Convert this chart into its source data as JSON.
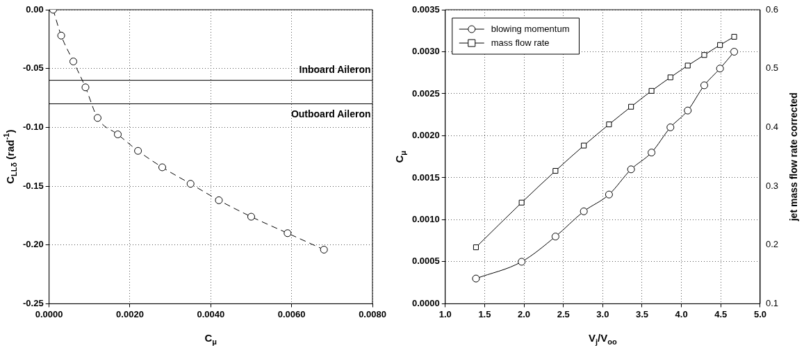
{
  "chart_data": [
    {
      "type": "line",
      "xlabel": "C$_{μ}$",
      "ylabel": "C$_{LLδ}$ (rad$^{-1}$)",
      "x": [
        0.0001,
        0.0003,
        0.0006,
        0.0009,
        0.0012,
        0.0017,
        0.0022,
        0.0028,
        0.0035,
        0.0042,
        0.005,
        0.0059,
        0.0068
      ],
      "series": [
        {
          "color": "#000000",
          "values": [
            0,
            -0.022,
            -0.044,
            -0.066,
            -0.092,
            -0.106,
            -0.12,
            -0.134,
            -0.148,
            -0.162,
            -0.176,
            -0.19,
            -0.204
          ]
        }
      ],
      "xlim": [
        0,
        0.008
      ],
      "xticks": [
        {
          "value": 0,
          "label": "0.0000"
        },
        {
          "value": 0.002,
          "label": "0.0020"
        },
        {
          "value": 0.004,
          "label": "0.0040"
        },
        {
          "value": 0.006,
          "label": "0.0060"
        },
        {
          "value": 0.008,
          "label": "0.0080"
        }
      ],
      "ylim": [
        -0.25,
        0
      ],
      "yticks": [
        {
          "value": -0.25,
          "label": "-0.25"
        },
        {
          "value": -0.2,
          "label": "-0.20"
        },
        {
          "value": -0.15,
          "label": "-0.15"
        },
        {
          "value": -0.1,
          "label": "-0.10"
        },
        {
          "value": -0.05,
          "label": "-0.05"
        },
        {
          "value": 0,
          "label": "0.00"
        }
      ],
      "grid": true,
      "marker": "circle",
      "line_style": "dashed",
      "ref_lines": [
        {
          "axis": "y",
          "value": -0.06,
          "label": "Inboard Aileron",
          "color": "#000000"
        },
        {
          "axis": "y",
          "value": -0.08,
          "label": "Outboard Aileron",
          "color": "#000000"
        }
      ]
    },
    {
      "type": "line",
      "xlabel": "V$_{j}$/V$_{oo}$",
      "ylabel": "C$_{μ}$",
      "y2label": "jet mass flow rate corrected",
      "x": [
        1.39,
        1.97,
        2.4,
        2.76,
        3.08,
        3.36,
        3.62,
        3.86,
        4.08,
        4.29,
        4.49,
        4.67
      ],
      "series": [
        {
          "name": "blowing momentum",
          "color": "#000000",
          "marker": "circle",
          "values": [
            0.0003,
            0.0005,
            0.0008,
            0.0011,
            0.0013,
            0.0016,
            0.0018,
            0.0021,
            0.0023,
            0.0026,
            0.0028,
            0.003
          ]
        },
        {
          "name": "mass flow rate",
          "color": "#000000",
          "marker": "square",
          "axis": "y2",
          "values": [
            0.196,
            0.272,
            0.326,
            0.369,
            0.405,
            0.435,
            0.462,
            0.485,
            0.505,
            0.523,
            0.54,
            0.554
          ]
        }
      ],
      "xlim": [
        1,
        5
      ],
      "xticks": [
        {
          "value": 1,
          "label": "1.0"
        },
        {
          "value": 1.5,
          "label": "1.5"
        },
        {
          "value": 2,
          "label": "2.0"
        },
        {
          "value": 2.5,
          "label": "2.5"
        },
        {
          "value": 3,
          "label": "3.0"
        },
        {
          "value": 3.5,
          "label": "3.5"
        },
        {
          "value": 4,
          "label": "4.0"
        },
        {
          "value": 4.5,
          "label": "4.5"
        },
        {
          "value": 5,
          "label": "5.0"
        }
      ],
      "ylim": [
        0,
        0.0035
      ],
      "yticks": [
        {
          "value": 0,
          "label": "0.0000"
        },
        {
          "value": 0.0005,
          "label": "0.0005"
        },
        {
          "value": 0.001,
          "label": "0.0010"
        },
        {
          "value": 0.0015,
          "label": "0.0015"
        },
        {
          "value": 0.002,
          "label": "0.0020"
        },
        {
          "value": 0.0025,
          "label": "0.0025"
        },
        {
          "value": 0.003,
          "label": "0.0030"
        },
        {
          "value": 0.0035,
          "label": "0.0035"
        }
      ],
      "y2lim": [
        0.1,
        0.6
      ],
      "y2ticks": [
        0.1,
        0.2,
        0.3,
        0.4,
        0.5,
        0.6
      ],
      "grid": true,
      "legend": "top left",
      "line_style": "solid"
    }
  ]
}
